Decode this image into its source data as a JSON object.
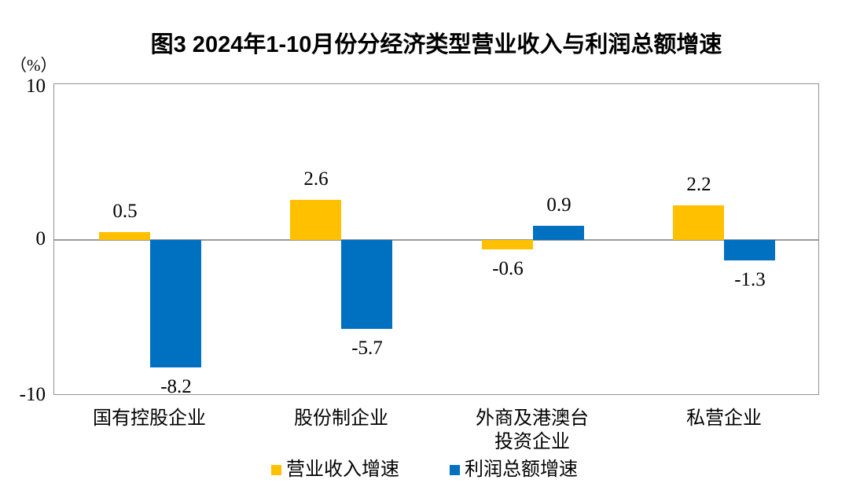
{
  "chart_data": {
    "type": "bar",
    "title": "图3 2024年1-10月份分经济类型营业收入与利润总额增速",
    "unit_label": "（%）",
    "categories": [
      "国有控股企业",
      "股份制企业",
      "外商及港澳台\n投资企业",
      "私营企业"
    ],
    "category_keys": [
      "state-owned",
      "joint-stock",
      "foreign-hmt",
      "private"
    ],
    "series": [
      {
        "key": "revenue",
        "name": "营业收入增速",
        "color": "#FFC000",
        "values": [
          0.5,
          2.6,
          -0.6,
          2.2
        ]
      },
      {
        "key": "profit",
        "name": "利润总额增速",
        "color": "#0070C0",
        "values": [
          -8.2,
          -5.7,
          0.9,
          -1.3
        ]
      }
    ],
    "ylim": [
      -10,
      10
    ],
    "ytick_labels": [
      "10",
      "0",
      "-10"
    ],
    "grid": false,
    "legend_position": "bottom",
    "value_labels_shown": true
  },
  "colors": {
    "background": "#FFFFFF",
    "text": "#000000",
    "axis_line": "#999999",
    "plot_border": "#919191",
    "series_revenue": "#FFC000",
    "series_profit": "#0070C0"
  }
}
